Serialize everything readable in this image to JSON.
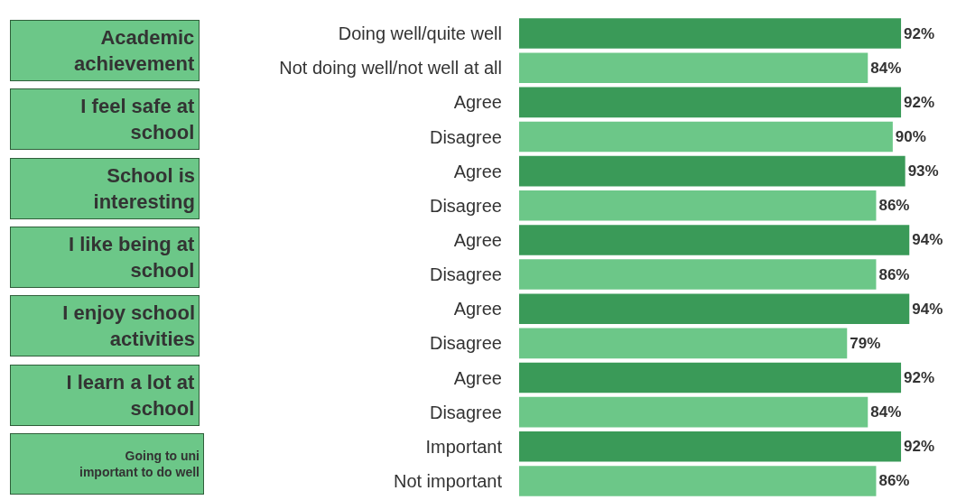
{
  "chart_data": {
    "type": "bar",
    "orientation": "horizontal",
    "categories": [
      "Doing well/quite well",
      "Not doing well/not well at all",
      "Agree",
      "Disagree",
      "Agree",
      "Disagree",
      "Agree",
      "Disagree",
      "Agree",
      "Disagree",
      "Agree",
      "Disagree",
      "Important",
      "Not important"
    ],
    "values": [
      92,
      84,
      92,
      90,
      93,
      86,
      94,
      86,
      94,
      79,
      92,
      84,
      92,
      86
    ],
    "value_labels": [
      "92%",
      "84%",
      "92%",
      "90%",
      "93%",
      "86%",
      "94%",
      "86%",
      "94%",
      "79%",
      "92%",
      "84%",
      "92%",
      "86%"
    ],
    "colors": [
      "#3a9a58",
      "#6cc788",
      "#3a9a58",
      "#6cc788",
      "#3a9a58",
      "#6cc788",
      "#3a9a58",
      "#6cc788",
      "#3a9a58",
      "#6cc788",
      "#3a9a58",
      "#6cc788",
      "#3a9a58",
      "#6cc788"
    ],
    "tick_labels": "y",
    "legend": false,
    "annotations": [
      "Academic\nachievement",
      "I feel safe at\nschool",
      "School is\ninteresting",
      "I like being at\nschool",
      "I enjoy school\nactivities",
      "I learn a lot at\nschool",
      "Going to uni\nimportant to do well"
    ]
  }
}
